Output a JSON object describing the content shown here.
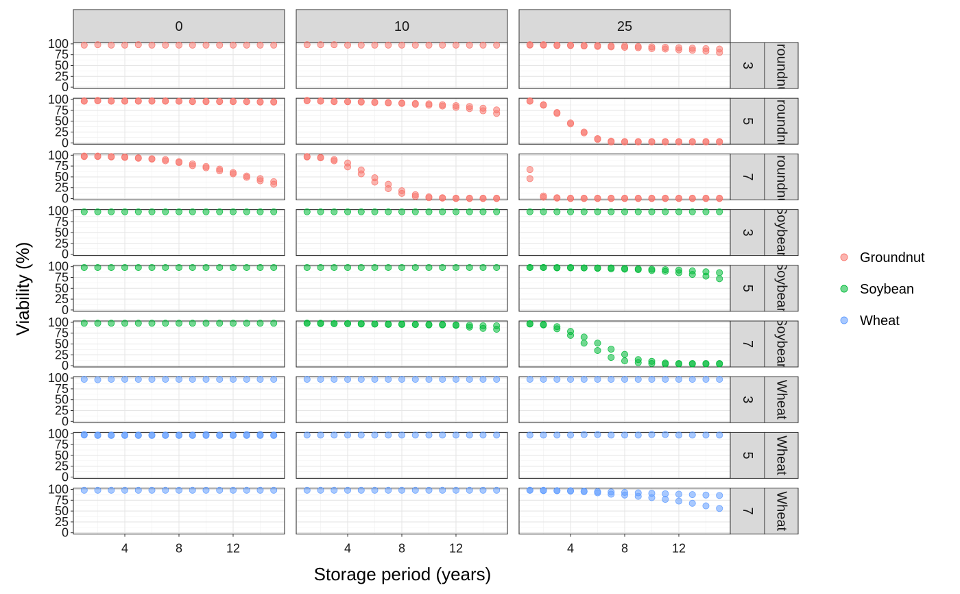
{
  "chart_data": {
    "type": "scatter",
    "xlabel": "Storage period (years)",
    "ylabel": "Viability (%)",
    "x_ticks": [
      4,
      8,
      12
    ],
    "y_ticks": [
      0,
      25,
      50,
      75,
      100
    ],
    "xlim": [
      0.2,
      15.8
    ],
    "ylim": [
      -3,
      103
    ],
    "grid": true,
    "legend_position": "right",
    "col_facets": [
      "0",
      "10",
      "25"
    ],
    "row_facets": [
      {
        "crop": "Groundnut",
        "moisture": "3",
        "strip_text": "Groundnut"
      },
      {
        "crop": "Groundnut",
        "moisture": "5",
        "strip_text": "Groundnut"
      },
      {
        "crop": "Groundnut",
        "moisture": "7",
        "strip_text": "Groundnut"
      },
      {
        "crop": "Soybean",
        "moisture": "3",
        "strip_text": "Soybean"
      },
      {
        "crop": "Soybean",
        "moisture": "5",
        "strip_text": "Soybean"
      },
      {
        "crop": "Soybean",
        "moisture": "7",
        "strip_text": "Soybean"
      },
      {
        "crop": "Wheat",
        "moisture": "3",
        "strip_text": "Wheat"
      },
      {
        "crop": "Wheat",
        "moisture": "5",
        "strip_text": "Wheat"
      },
      {
        "crop": "Wheat",
        "moisture": "7",
        "strip_text": "Wheat"
      }
    ],
    "series": [
      {
        "name": "Groundnut",
        "color": "#F8766D"
      },
      {
        "name": "Soybean",
        "color": "#00BA38"
      },
      {
        "name": "Wheat",
        "color": "#619CFF"
      }
    ],
    "x_values": [
      1,
      2,
      3,
      4,
      5,
      6,
      7,
      8,
      9,
      10,
      11,
      12,
      13,
      14,
      15
    ],
    "panels": [
      {
        "row": 0,
        "col": 0,
        "y": [
          [
            97,
            98,
            97,
            97,
            98,
            97,
            97,
            97,
            97,
            97,
            97,
            97,
            97,
            97,
            97
          ]
        ]
      },
      {
        "row": 0,
        "col": 1,
        "y": [
          [
            98,
            98,
            98,
            97,
            97,
            97,
            97,
            97,
            97,
            97,
            97,
            97,
            97,
            97,
            97
          ]
        ]
      },
      {
        "row": 0,
        "col": 2,
        "y": [
          [
            98,
            98,
            97,
            97,
            96,
            96,
            95,
            95,
            94,
            93,
            92,
            91,
            90,
            89,
            88
          ],
          [
            97,
            97,
            96,
            96,
            95,
            94,
            93,
            92,
            91,
            89,
            88,
            86,
            85,
            83,
            80
          ]
        ]
      },
      {
        "row": 1,
        "col": 0,
        "y": [
          [
            97,
            98,
            97,
            97,
            97,
            97,
            97,
            96,
            96,
            96,
            96,
            96,
            95,
            95,
            95
          ],
          [
            96,
            97,
            96,
            96,
            96,
            96,
            96,
            96,
            95,
            95,
            95,
            95,
            95,
            94,
            94
          ]
        ]
      },
      {
        "row": 1,
        "col": 1,
        "y": [
          [
            98,
            97,
            96,
            95,
            95,
            94,
            93,
            92,
            91,
            90,
            88,
            86,
            84,
            80,
            76
          ],
          [
            97,
            96,
            95,
            95,
            94,
            93,
            92,
            91,
            89,
            87,
            85,
            82,
            79,
            74,
            68
          ]
        ]
      },
      {
        "row": 1,
        "col": 2,
        "y": [
          [
            97,
            88,
            70,
            46,
            25,
            10,
            4,
            3,
            3,
            3,
            3,
            3,
            3,
            3,
            3
          ],
          [
            96,
            87,
            68,
            44,
            23,
            8,
            2,
            2,
            2,
            2,
            2,
            2,
            2,
            2,
            2
          ]
        ]
      },
      {
        "row": 2,
        "col": 0,
        "y": [
          [
            98,
            98,
            97,
            96,
            94,
            92,
            90,
            85,
            80,
            74,
            68,
            60,
            52,
            46,
            39
          ],
          [
            97,
            97,
            96,
            95,
            93,
            91,
            87,
            83,
            76,
            71,
            64,
            57,
            49,
            41,
            33
          ]
        ]
      },
      {
        "row": 2,
        "col": 1,
        "y": [
          [
            97,
            95,
            90,
            82,
            66,
            48,
            33,
            18,
            9,
            4,
            2,
            1,
            1,
            1,
            1
          ],
          [
            96,
            94,
            87,
            73,
            57,
            38,
            23,
            12,
            5,
            2,
            1,
            0,
            0,
            0,
            0
          ]
        ]
      },
      {
        "row": 2,
        "col": 2,
        "y": [
          [
            67,
            6,
            2,
            1,
            1,
            1,
            1,
            1,
            1,
            1,
            1,
            1,
            1,
            1,
            1
          ],
          [
            46,
            3,
            1,
            0,
            0,
            0,
            0,
            0,
            0,
            0,
            0,
            0,
            0,
            0,
            0
          ]
        ]
      },
      {
        "row": 3,
        "col": 0,
        "y": [
          [
            98,
            98,
            98,
            98,
            98,
            98,
            98,
            98,
            98,
            98,
            98,
            98,
            98,
            98,
            98
          ]
        ]
      },
      {
        "row": 3,
        "col": 1,
        "y": [
          [
            98,
            98,
            98,
            98,
            98,
            98,
            98,
            98,
            98,
            98,
            98,
            98,
            98,
            98,
            98
          ]
        ]
      },
      {
        "row": 3,
        "col": 2,
        "y": [
          [
            98,
            98,
            98,
            98,
            98,
            98,
            98,
            98,
            98,
            98,
            98,
            98,
            98,
            98,
            98
          ]
        ]
      },
      {
        "row": 4,
        "col": 0,
        "y": [
          [
            98,
            98,
            98,
            98,
            98,
            98,
            98,
            98,
            98,
            98,
            98,
            98,
            98,
            98,
            98
          ]
        ]
      },
      {
        "row": 4,
        "col": 1,
        "y": [
          [
            98,
            98,
            98,
            98,
            98,
            98,
            98,
            98,
            98,
            98,
            98,
            98,
            98,
            98,
            98
          ]
        ]
      },
      {
        "row": 4,
        "col": 2,
        "y": [
          [
            98,
            98,
            98,
            98,
            97,
            97,
            97,
            96,
            95,
            94,
            93,
            92,
            90,
            88,
            86
          ],
          [
            98,
            98,
            97,
            97,
            97,
            96,
            95,
            94,
            93,
            91,
            89,
            86,
            82,
            78,
            72
          ]
        ]
      },
      {
        "row": 5,
        "col": 0,
        "y": [
          [
            98,
            98,
            98,
            98,
            98,
            98,
            98,
            98,
            98,
            98,
            98,
            98,
            98,
            98,
            98
          ]
        ]
      },
      {
        "row": 5,
        "col": 1,
        "y": [
          [
            98,
            98,
            97,
            97,
            97,
            96,
            96,
            96,
            95,
            95,
            95,
            94,
            93,
            92,
            92
          ],
          [
            98,
            97,
            97,
            97,
            96,
            96,
            95,
            95,
            95,
            94,
            94,
            93,
            89,
            86,
            84
          ]
        ]
      },
      {
        "row": 5,
        "col": 2,
        "y": [
          [
            97,
            95,
            90,
            79,
            66,
            52,
            38,
            26,
            14,
            10,
            6,
            5,
            5,
            5,
            5
          ],
          [
            96,
            94,
            85,
            70,
            52,
            35,
            19,
            11,
            7,
            5,
            4,
            4,
            4,
            4,
            4
          ]
        ]
      },
      {
        "row": 6,
        "col": 0,
        "y": [
          [
            97,
            96,
            97,
            97,
            97,
            97,
            97,
            97,
            97,
            97,
            97,
            97,
            97,
            97,
            97
          ]
        ]
      },
      {
        "row": 6,
        "col": 1,
        "y": [
          [
            97,
            97,
            97,
            97,
            97,
            97,
            97,
            97,
            97,
            97,
            97,
            97,
            97,
            97,
            97
          ]
        ]
      },
      {
        "row": 6,
        "col": 2,
        "y": [
          [
            97,
            97,
            97,
            97,
            97,
            97,
            97,
            97,
            97,
            97,
            97,
            97,
            97,
            97,
            97
          ]
        ]
      },
      {
        "row": 7,
        "col": 0,
        "y": [
          [
            98,
            97,
            97,
            97,
            97,
            97,
            97,
            97,
            97,
            98,
            97,
            97,
            98,
            98,
            97
          ],
          [
            97,
            96,
            96,
            96,
            96,
            96,
            96,
            96,
            96,
            96,
            96,
            96,
            96,
            96,
            96
          ]
        ]
      },
      {
        "row": 7,
        "col": 1,
        "y": [
          [
            97,
            97,
            97,
            97,
            97,
            97,
            97,
            97,
            97,
            97,
            97,
            97,
            97,
            97,
            97
          ]
        ]
      },
      {
        "row": 7,
        "col": 2,
        "y": [
          [
            97,
            97,
            97,
            97,
            98,
            98,
            97,
            97,
            97,
            98,
            98,
            97,
            97,
            97,
            97
          ]
        ]
      },
      {
        "row": 8,
        "col": 0,
        "y": [
          [
            98,
            98,
            98,
            98,
            98,
            98,
            98,
            98,
            98,
            98,
            98,
            98,
            98,
            98,
            98
          ]
        ]
      },
      {
        "row": 8,
        "col": 1,
        "y": [
          [
            98,
            98,
            98,
            98,
            98,
            98,
            98,
            98,
            98,
            98,
            98,
            98,
            98,
            98,
            98
          ]
        ]
      },
      {
        "row": 8,
        "col": 2,
        "y": [
          [
            98,
            98,
            97,
            97,
            96,
            95,
            94,
            93,
            92,
            91,
            90,
            89,
            88,
            87,
            86
          ],
          [
            98,
            97,
            97,
            96,
            95,
            92,
            89,
            87,
            84,
            81,
            77,
            73,
            68,
            62,
            56
          ]
        ]
      }
    ]
  }
}
